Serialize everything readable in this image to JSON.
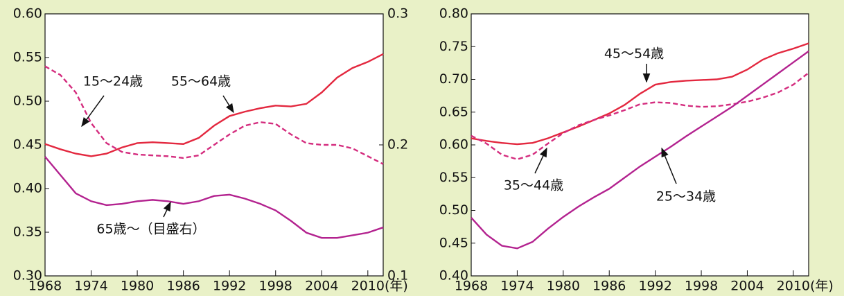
{
  "chart_data": [
    {
      "type": "line",
      "x_unit": "(年)",
      "x": [
        1968,
        1970,
        1972,
        1974,
        1976,
        1978,
        1980,
        1982,
        1984,
        1986,
        1988,
        1990,
        1992,
        1994,
        1996,
        1998,
        2000,
        2002,
        2004,
        2006,
        2008,
        2010,
        2012
      ],
      "xlim": [
        1968,
        2012
      ],
      "xticks": [
        1968,
        1974,
        1980,
        1986,
        1992,
        1998,
        2004,
        2010
      ],
      "ylim": [
        0.3,
        0.6
      ],
      "yticks": [
        {
          "value": 0.3,
          "label": "0.30"
        },
        {
          "value": 0.35,
          "label": "0.35"
        },
        {
          "value": 0.4,
          "label": "0.40"
        },
        {
          "value": 0.45,
          "label": "0.45"
        },
        {
          "value": 0.5,
          "label": "0.50"
        },
        {
          "value": 0.55,
          "label": "0.55"
        },
        {
          "value": 0.6,
          "label": "0.60"
        }
      ],
      "y2lim": [
        0.1,
        0.3
      ],
      "y2ticks": [
        0.1,
        0.2,
        0.3
      ],
      "series": [
        {
          "name": "55〜64歳",
          "color": "#e3283f",
          "style": "solid",
          "values": [
            0.451,
            0.445,
            0.44,
            0.437,
            0.44,
            0.447,
            0.452,
            0.453,
            0.452,
            0.451,
            0.458,
            0.472,
            0.483,
            0.488,
            0.492,
            0.495,
            0.494,
            0.497,
            0.51,
            0.527,
            0.538,
            0.545,
            0.554
          ]
        },
        {
          "name": "15〜24歳",
          "color": "#d42c7e",
          "style": "dashed",
          "values": [
            0.54,
            0.53,
            0.51,
            0.475,
            0.452,
            0.442,
            0.439,
            0.438,
            0.437,
            0.435,
            0.438,
            0.45,
            0.462,
            0.472,
            0.476,
            0.474,
            0.462,
            0.452,
            0.45,
            0.45,
            0.446,
            0.437,
            0.428
          ]
        },
        {
          "name": "65歳〜（目盛右）",
          "color": "#b3228f",
          "style": "solid",
          "axis": "y2",
          "values": [
            0.191,
            0.177,
            0.163,
            0.157,
            0.154,
            0.155,
            0.157,
            0.158,
            0.157,
            0.155,
            0.157,
            0.161,
            0.162,
            0.159,
            0.155,
            0.15,
            0.142,
            0.133,
            0.129,
            0.129,
            0.131,
            0.133,
            0.137
          ]
        }
      ]
    },
    {
      "type": "line",
      "x_unit": "(年)",
      "x": [
        1968,
        1970,
        1972,
        1974,
        1976,
        1978,
        1980,
        1982,
        1984,
        1986,
        1988,
        1990,
        1992,
        1994,
        1996,
        1998,
        2000,
        2002,
        2004,
        2006,
        2008,
        2010,
        2012
      ],
      "xlim": [
        1968,
        2012
      ],
      "xticks": [
        1968,
        1974,
        1980,
        1986,
        1992,
        1998,
        2004,
        2010
      ],
      "ylim": [
        0.4,
        0.8
      ],
      "yticks": [
        {
          "value": 0.4,
          "label": "0.40"
        },
        {
          "value": 0.45,
          "label": "0.45"
        },
        {
          "value": 0.5,
          "label": "0.50"
        },
        {
          "value": 0.55,
          "label": "0.55"
        },
        {
          "value": 0.6,
          "label": "0.60"
        },
        {
          "value": 0.65,
          "label": "0.65"
        },
        {
          "value": 0.7,
          "label": "0.70"
        },
        {
          "value": 0.75,
          "label": "0.75"
        },
        {
          "value": 0.8,
          "label": "0.80"
        }
      ],
      "series": [
        {
          "name": "45〜54歳",
          "color": "#e3283f",
          "style": "solid",
          "values": [
            0.61,
            0.606,
            0.603,
            0.601,
            0.603,
            0.61,
            0.619,
            0.628,
            0.638,
            0.648,
            0.661,
            0.678,
            0.692,
            0.696,
            0.698,
            0.699,
            0.7,
            0.704,
            0.715,
            0.73,
            0.74,
            0.747,
            0.755
          ]
        },
        {
          "name": "35〜44歳",
          "color": "#d42c7e",
          "style": "dashed",
          "values": [
            0.614,
            0.602,
            0.585,
            0.578,
            0.585,
            0.602,
            0.618,
            0.63,
            0.638,
            0.645,
            0.653,
            0.662,
            0.665,
            0.664,
            0.66,
            0.658,
            0.659,
            0.662,
            0.666,
            0.672,
            0.68,
            0.692,
            0.71
          ]
        },
        {
          "name": "25〜34歳",
          "color": "#b3228f",
          "style": "solid",
          "values": [
            0.489,
            0.463,
            0.446,
            0.442,
            0.452,
            0.472,
            0.49,
            0.506,
            0.52,
            0.533,
            0.55,
            0.567,
            0.582,
            0.597,
            0.613,
            0.628,
            0.643,
            0.658,
            0.675,
            0.692,
            0.709,
            0.726,
            0.743
          ]
        }
      ]
    }
  ]
}
